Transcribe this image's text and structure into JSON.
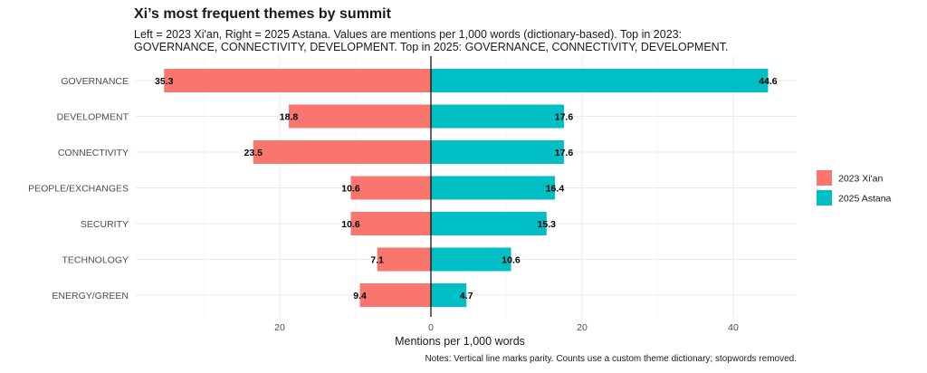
{
  "chart_data": {
    "type": "bar",
    "orientation": "horizontal-diverging",
    "title": "Xi’s most frequent themes by summit",
    "subtitle": "Left = 2023 Xi'an, Right = 2025 Astana. Values are mentions per 1,000 words (dictionary-based). Top in 2023: GOVERNANCE, CONNECTIVITY, DEVELOPMENT. Top in 2025: GOVERNANCE, CONNECTIVITY, DEVELOPMENT.",
    "xlabel": "Mentions per 1,000 words",
    "ylabel": "",
    "caption": "Notes: Vertical line marks parity. Counts use a custom theme dictionary; stopwords removed.",
    "categories": [
      "GOVERNANCE",
      "DEVELOPMENT",
      "CONNECTIVITY",
      "PEOPLE/EXCHANGES",
      "SECURITY",
      "TECHNOLOGY",
      "ENERGY/GREEN"
    ],
    "series": [
      {
        "name": "2023 Xi'an",
        "side": "left",
        "color": "#F8766D",
        "values": [
          35.3,
          18.8,
          23.5,
          10.6,
          10.6,
          7.1,
          9.4
        ]
      },
      {
        "name": "2025 Astana",
        "side": "right",
        "color": "#00BFC4",
        "values": [
          44.6,
          17.6,
          17.6,
          16.4,
          15.3,
          10.6,
          4.7
        ]
      }
    ],
    "xlim": [
      -35.3,
      44.6
    ],
    "x_ticks": [
      -20,
      0,
      20,
      40
    ],
    "x_tick_labels": [
      "20",
      "0",
      "20",
      "40"
    ],
    "grid": true,
    "legend_position": "right"
  }
}
